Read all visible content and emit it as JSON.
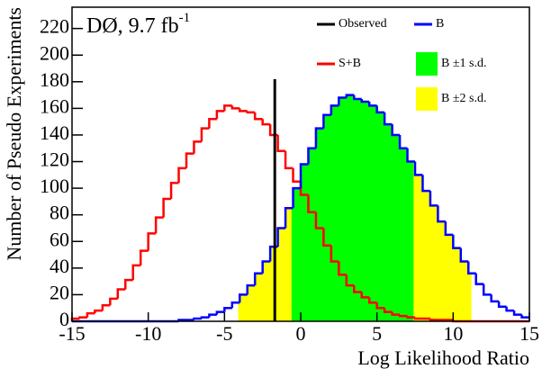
{
  "chart_data": {
    "type": "histogram",
    "title": "DØ, 9.7 fb",
    "title_superscript": "-1",
    "xlabel": "Log Likelihood Ratio",
    "ylabel": "Number of Pseudo Experiments",
    "bins": [
      -15,
      -14.5,
      -14,
      -13.5,
      -13,
      -12.5,
      -12,
      -11.5,
      -11,
      -10.5,
      -10,
      -9.5,
      -9,
      -8.5,
      -8,
      -7.5,
      -7,
      -6.5,
      -6,
      -5.5,
      -5,
      -4.5,
      -4,
      -3.5,
      -3,
      -2.5,
      -2,
      -1.5,
      -1,
      -0.5,
      0,
      0.5,
      1,
      1.5,
      2,
      2.5,
      3,
      3.5,
      4,
      4.5,
      5,
      5.5,
      6,
      6.5,
      7,
      7.5,
      8,
      8.5,
      9,
      9.5,
      10,
      10.5,
      11,
      11.5,
      12,
      12.5,
      13,
      13.5,
      14,
      14.5,
      15
    ],
    "series": [
      {
        "name": "S+B",
        "color": "#ff0000",
        "values": [
          2,
          3,
          6,
          8,
          12,
          17,
          24,
          31,
          42,
          53,
          66,
          78,
          92,
          104,
          115,
          126,
          135,
          145,
          152,
          158,
          162,
          160,
          158,
          157,
          152,
          148,
          140,
          128,
          115,
          105,
          95,
          82,
          70,
          57,
          45,
          35,
          27,
          22,
          18,
          14,
          10,
          7,
          5,
          4,
          3,
          2,
          2,
          1,
          1,
          1,
          0,
          0,
          0,
          0,
          0,
          0,
          0,
          0,
          0,
          0
        ]
      },
      {
        "name": "B",
        "color": "#0000ff",
        "values": [
          0,
          0,
          0,
          0,
          0,
          0,
          0,
          0,
          0,
          0,
          0,
          0,
          0,
          0,
          1,
          1,
          2,
          3,
          5,
          7,
          10,
          14,
          20,
          27,
          36,
          45,
          56,
          70,
          85,
          100,
          118,
          130,
          145,
          155,
          162,
          168,
          170,
          167,
          165,
          162,
          157,
          148,
          140,
          130,
          120,
          110,
          98,
          87,
          75,
          65,
          55,
          45,
          36,
          28,
          20,
          15,
          11,
          8,
          5,
          3
        ]
      }
    ],
    "bands": [
      {
        "name": "B ±2 s.d.",
        "color": "#ffff00",
        "range": [
          -4.1,
          11.2
        ]
      },
      {
        "name": "B ±1 s.d.",
        "color": "#00ff00",
        "range": [
          -0.6,
          7.4
        ]
      }
    ],
    "observed": {
      "name": "Observed",
      "color": "#000000",
      "x": -1.7
    },
    "xlim": [
      -15,
      15
    ],
    "xticks": [
      -15,
      -10,
      -5,
      0,
      5,
      10,
      15
    ],
    "ylim": [
      0,
      236
    ],
    "yticks": [
      0,
      20,
      40,
      60,
      80,
      100,
      120,
      140,
      160,
      180,
      200,
      220
    ]
  }
}
